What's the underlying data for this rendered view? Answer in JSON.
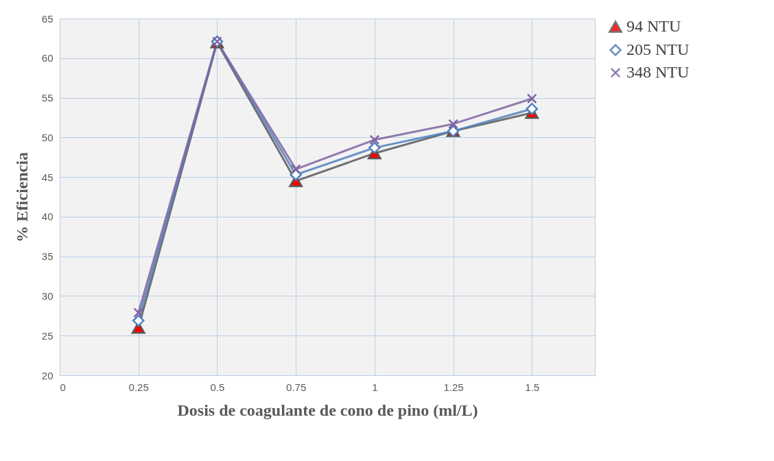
{
  "chart_data": {
    "type": "line",
    "xlabel": "Dosis de coagulante de cono de pino (ml/L)",
    "ylabel": "% Eficiencia",
    "x": [
      0.25,
      0.5,
      0.75,
      1,
      1.25,
      1.5
    ],
    "series": [
      {
        "name": "94 NTU",
        "color": "#595959",
        "marker": "triangle",
        "values": [
          26,
          62,
          44.5,
          48,
          50.8,
          53.1
        ]
      },
      {
        "name": "205 NTU",
        "color": "#4f81bd",
        "marker": "diamond",
        "values": [
          26.9,
          62.1,
          45.3,
          48.7,
          50.8,
          53.6
        ]
      },
      {
        "name": "348 NTU",
        "color": "#8064a2",
        "marker": "cross",
        "values": [
          27.9,
          62.1,
          46,
          49.7,
          51.7,
          54.9
        ]
      }
    ],
    "xlim": [
      0,
      1.7
    ],
    "xticks": [
      0,
      0.25,
      0.5,
      0.75,
      1,
      1.25,
      1.5
    ],
    "ylim": [
      20,
      65
    ],
    "yticks": [
      20,
      25,
      30,
      35,
      40,
      45,
      50,
      55,
      60,
      65
    ],
    "grid": true,
    "legend": "right",
    "line_style": "solid"
  }
}
